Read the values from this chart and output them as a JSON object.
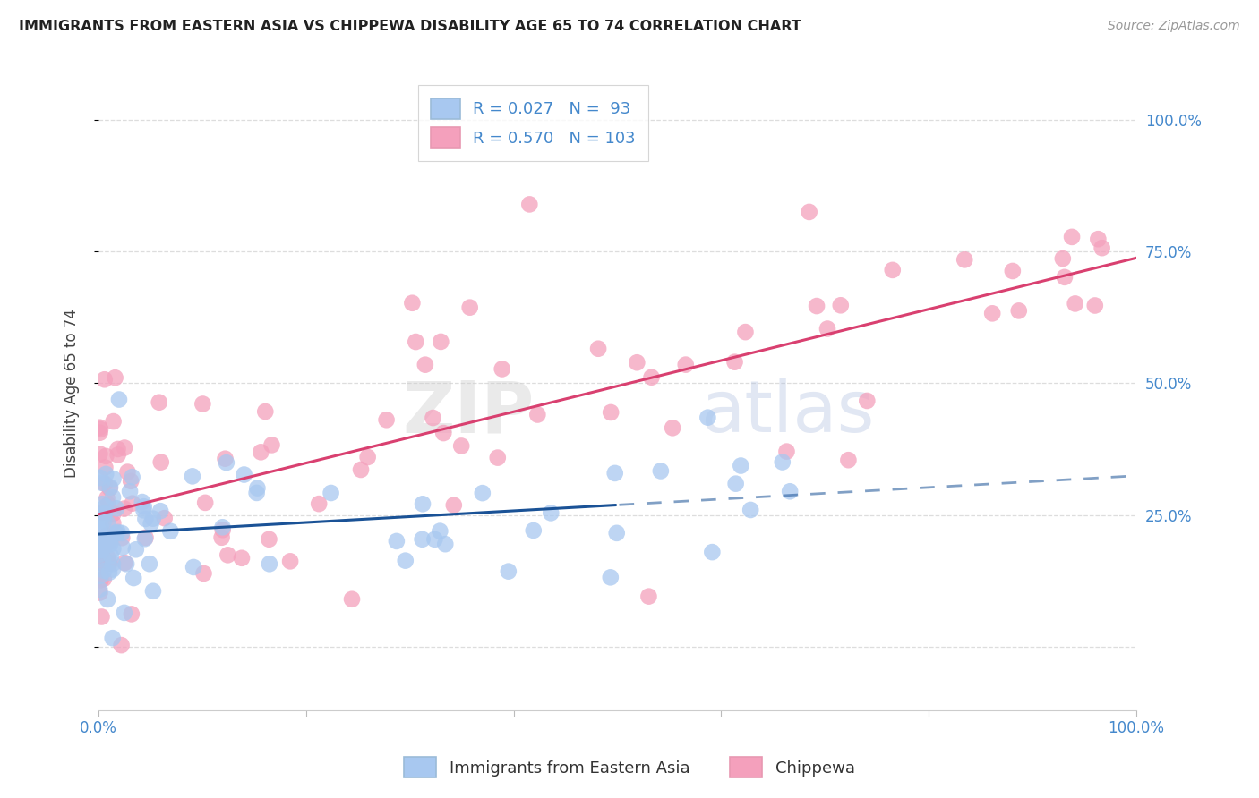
{
  "title": "IMMIGRANTS FROM EASTERN ASIA VS CHIPPEWA DISABILITY AGE 65 TO 74 CORRELATION CHART",
  "source": "Source: ZipAtlas.com",
  "ylabel": "Disability Age 65 to 74",
  "legend_label1": "Immigrants from Eastern Asia",
  "legend_label2": "Chippewa",
  "R1": 0.027,
  "N1": 93,
  "R2": 0.57,
  "N2": 103,
  "color_blue": "#A8C8F0",
  "color_pink": "#F4A0BC",
  "line_blue": "#1A5296",
  "line_pink": "#D94070",
  "watermark_zip": "ZIP",
  "watermark_atlas": "atlas",
  "background_color": "#FFFFFF",
  "grid_color": "#DDDDDD",
  "title_color": "#222222",
  "source_color": "#999999",
  "tick_color": "#4488CC",
  "ylabel_color": "#444444",
  "xlim": [
    0.0,
    1.0
  ],
  "ylim": [
    -0.12,
    1.08
  ],
  "yticks": [
    0.0,
    0.25,
    0.5,
    0.75,
    1.0
  ],
  "ytick_labels": [
    "",
    "25.0%",
    "50.0%",
    "75.0%",
    "100.0%"
  ],
  "xticks": [
    0.0,
    0.2,
    0.4,
    0.6,
    0.8,
    1.0
  ],
  "xtick_labels_show": [
    "0.0%",
    "100.0%"
  ],
  "blue_line_solid_end": 0.5,
  "pink_line_y0": 0.25,
  "pink_line_y1": 0.65
}
